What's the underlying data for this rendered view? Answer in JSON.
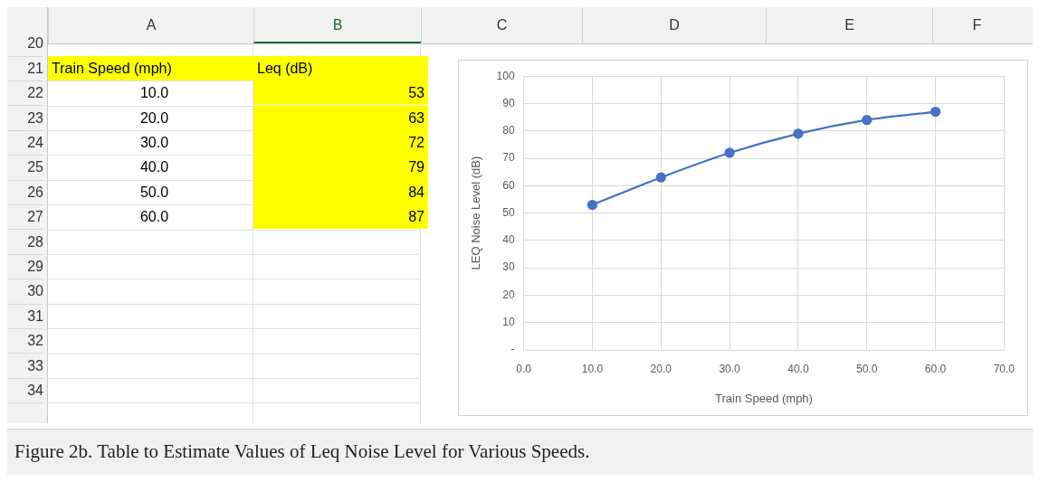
{
  "chart_data": {
    "type": "line",
    "x": [
      10,
      20,
      30,
      40,
      50,
      60
    ],
    "series": [
      {
        "color": "#4472c4",
        "values": [
          53,
          63,
          72,
          79,
          84,
          87
        ]
      }
    ],
    "xlim": [
      0,
      70
    ],
    "xticks": [
      {
        "value": 0,
        "label": "0.0"
      },
      {
        "value": 10,
        "label": "10.0"
      },
      {
        "value": 20,
        "label": "20.0"
      },
      {
        "value": 30,
        "label": "30.0"
      },
      {
        "value": 40,
        "label": "40.0"
      },
      {
        "value": 50,
        "label": "50.0"
      },
      {
        "value": 60,
        "label": "60.0"
      },
      {
        "value": 70,
        "label": "70.0"
      }
    ],
    "ylim": [
      0,
      100
    ],
    "yticks": [
      {
        "value": 0,
        "label": "-"
      },
      10,
      20,
      30,
      40,
      50,
      60,
      70,
      80,
      90,
      100
    ],
    "xlabel": "Train Speed (mph)",
    "ylabel": "LEQ Noise Level (dB)",
    "grid": true,
    "legend": false,
    "marker": "circle",
    "line_style": "solid",
    "annotations": [
      "Figure 2b. Table to Estimate Values of Leq Noise Level for Various Speeds.",
      "Train Speed (mph)",
      "Leq (dB)",
      "A",
      "B",
      "C",
      "D",
      "E",
      "F",
      "20",
      "21",
      "22",
      "23",
      "24",
      "25",
      "26",
      "27",
      "28",
      "29",
      "30",
      "31",
      "32",
      "33",
      "34",
      "53",
      "63",
      "72",
      "79",
      "84",
      "87"
    ]
  }
}
